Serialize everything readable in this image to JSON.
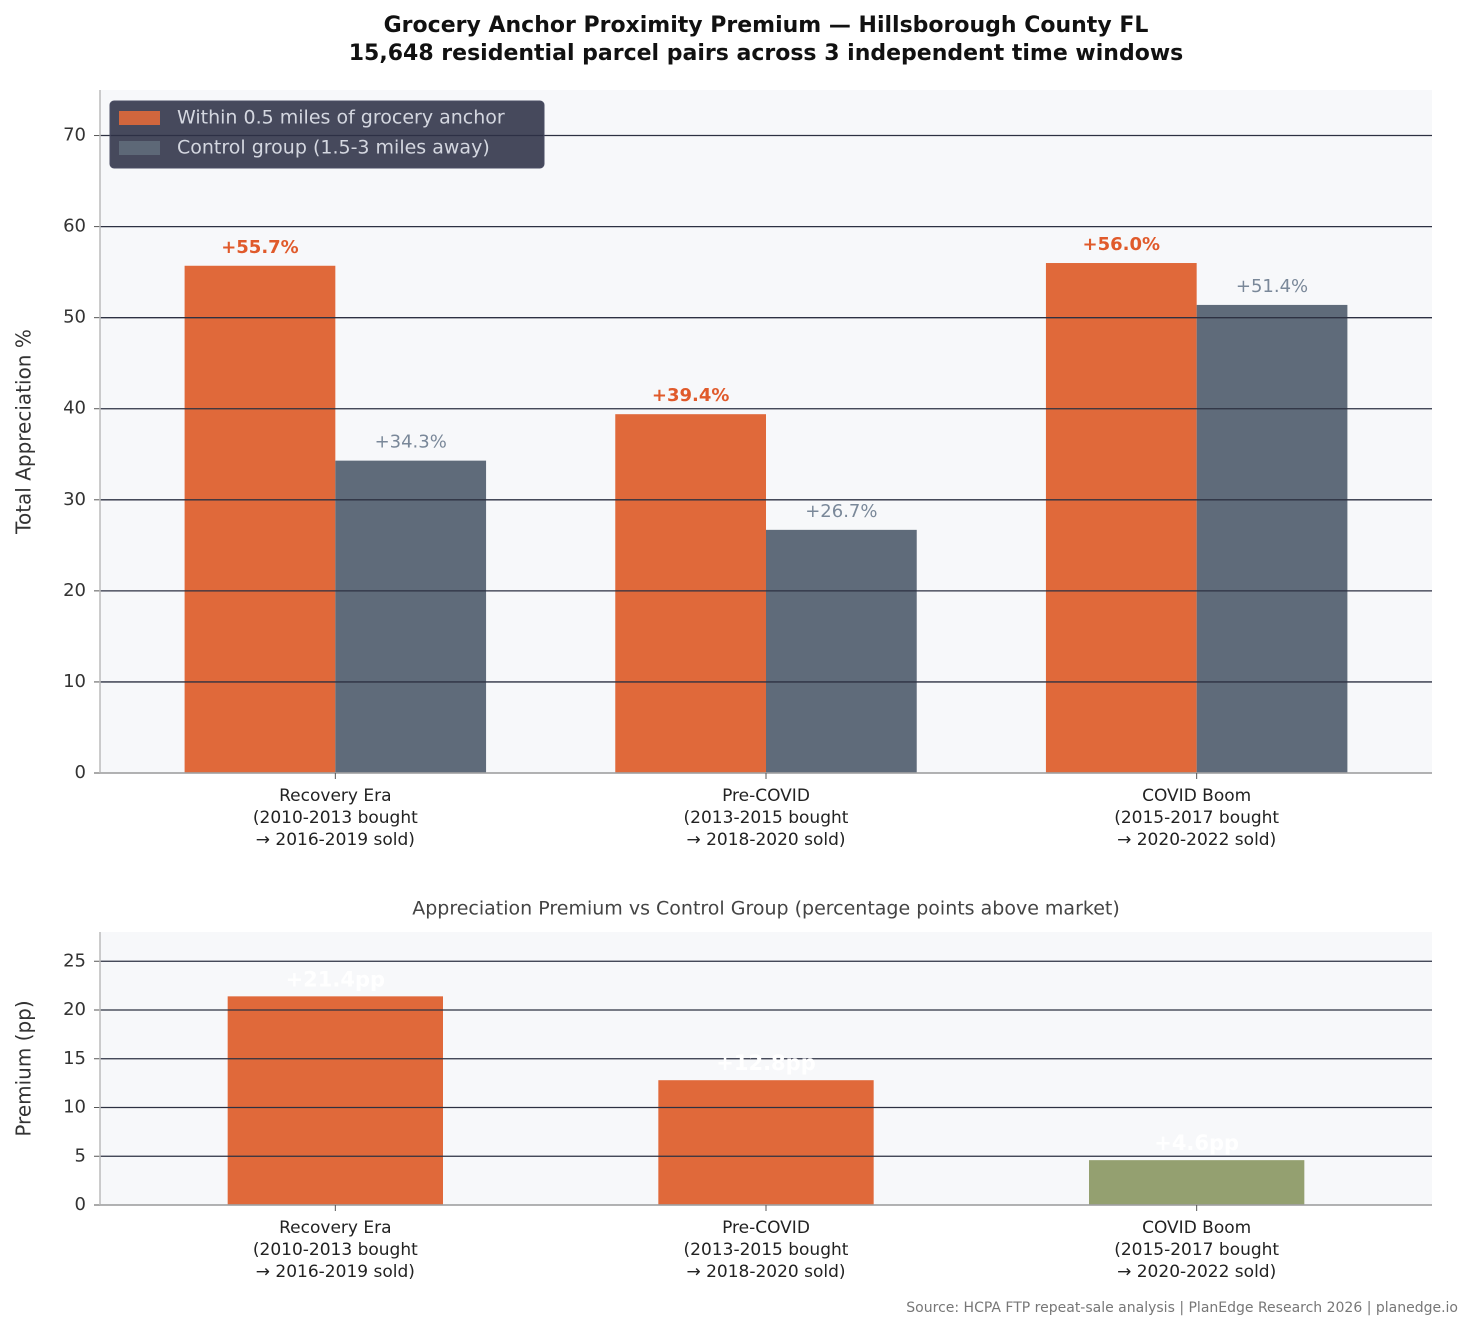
{
  "title": "Grocery Anchor Proximity Premium — Hillsborough County FL",
  "subtitle": "15,648 residential parcel pairs across 3 independent time windows",
  "source": "Source: HCPA FTP repeat-sale analysis | PlanEdge Research 2026 | planedge.io",
  "chart_data": [
    {
      "type": "bar",
      "ylabel": "Total Appreciation %",
      "categories": [
        "Recovery Era\n(2010-2013 bought\n→ 2016-2019 sold)",
        "Pre-COVID\n(2013-2015 bought\n→ 2018-2020 sold)",
        "COVID Boom\n(2015-2017 bought\n→ 2020-2022 sold)"
      ],
      "series": [
        {
          "name": "Within 0.5 miles of grocery anchor",
          "color": "#e0693a",
          "label_color": "#e05a2b",
          "values": [
            55.7,
            39.4,
            56.0
          ],
          "value_labels": [
            "+55.7%",
            "+39.4%",
            "+56.0%"
          ]
        },
        {
          "name": "Control group (1.5-3 miles away)",
          "color": "#5f6b7a",
          "label_color": "#7a8899",
          "values": [
            34.3,
            26.7,
            51.4
          ],
          "value_labels": [
            "+34.3%",
            "+26.7%",
            "+51.4%"
          ]
        }
      ],
      "ylim": [
        0,
        75
      ],
      "yticks": [
        0,
        10,
        20,
        30,
        40,
        50,
        60,
        70
      ],
      "grid": true,
      "legend": "upper left"
    },
    {
      "type": "bar",
      "title": "Appreciation Premium vs Control Group (percentage points above market)",
      "ylabel": "Premium (pp)",
      "categories": [
        "Recovery Era\n(2010-2013 bought\n→ 2016-2019 sold)",
        "Pre-COVID\n(2013-2015 bought\n→ 2018-2020 sold)",
        "COVID Boom\n(2015-2017 bought\n→ 2020-2022 sold)"
      ],
      "values": [
        21.4,
        12.8,
        4.6
      ],
      "value_labels": [
        "+21.4pp",
        "+12.8pp",
        "+4.6pp"
      ],
      "colors": [
        "#e0693a",
        "#e0693a",
        "#94a070"
      ],
      "label_color": "#ffffff",
      "ylim": [
        0,
        28
      ],
      "yticks": [
        0,
        5,
        10,
        15,
        20,
        25
      ],
      "grid": true
    }
  ]
}
